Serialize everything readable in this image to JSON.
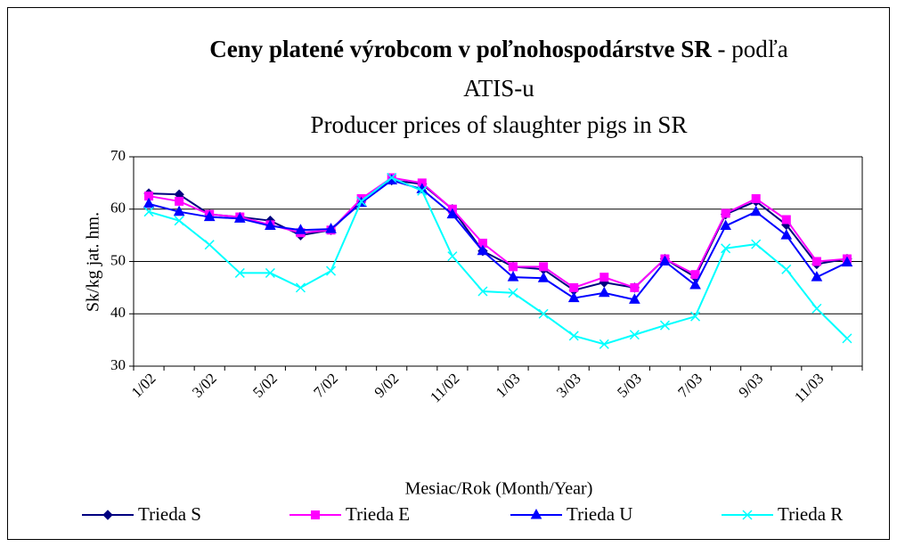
{
  "chart_data": {
    "type": "line",
    "title": "Ceny platené výrobcom v poľnohospodárstve SR",
    "title_suffix": "- podľa",
    "title_line2": "ATIS-u",
    "subtitle": "Producer prices of slaughter pigs in SR",
    "y_label": "Sk/kg jat. hm.",
    "x_label": "Mesiac/Rok (Month/Year)",
    "categories": [
      "1/02",
      null,
      "3/02",
      null,
      "5/02",
      null,
      "7/02",
      null,
      "9/02",
      null,
      "11/02",
      null,
      "1/03",
      null,
      "3/03",
      null,
      "5/03",
      null,
      "7/03",
      null,
      "9/03",
      null,
      "11/03",
      null
    ],
    "ylim": [
      30,
      70
    ],
    "yticks": [
      30,
      40,
      50,
      60,
      70
    ],
    "grid": true,
    "series": [
      {
        "name": "Trieda S",
        "color": "#000080",
        "marker": "diamond",
        "values": [
          63,
          62.8,
          59,
          58.5,
          57.8,
          55,
          56,
          61.5,
          65.5,
          64.8,
          60,
          52,
          49,
          48.5,
          44.5,
          46,
          45,
          50.5,
          47,
          59,
          61.5,
          57,
          49.5,
          50.5
        ]
      },
      {
        "name": "Trieda E",
        "color": "#ff00ff",
        "marker": "square",
        "values": [
          62.5,
          61.5,
          59,
          58.5,
          57,
          55.5,
          56,
          62,
          66,
          65,
          60,
          53.5,
          49,
          49,
          45,
          47,
          45,
          50.5,
          47.5,
          59.2,
          62,
          58,
          50,
          50.5
        ]
      },
      {
        "name": "Trieda U",
        "color": "#0000ff",
        "marker": "triangle",
        "values": [
          61,
          59.5,
          58.5,
          58.2,
          56.8,
          56,
          56.2,
          61.2,
          65.5,
          63.8,
          59,
          52,
          47,
          46.8,
          43,
          44,
          42.7,
          50,
          45.5,
          56.8,
          59.5,
          55,
          47,
          49.8
        ]
      },
      {
        "name": "Trieda R",
        "color": "#00ffff",
        "marker": "x",
        "values": [
          59.5,
          57.8,
          53.2,
          47.8,
          47.8,
          45,
          48.2,
          61.5,
          66,
          63.5,
          51,
          44.3,
          44,
          40,
          35.8,
          34.2,
          36,
          37.8,
          39.5,
          52.5,
          53.3,
          48.5,
          41,
          35.3
        ]
      }
    ]
  }
}
